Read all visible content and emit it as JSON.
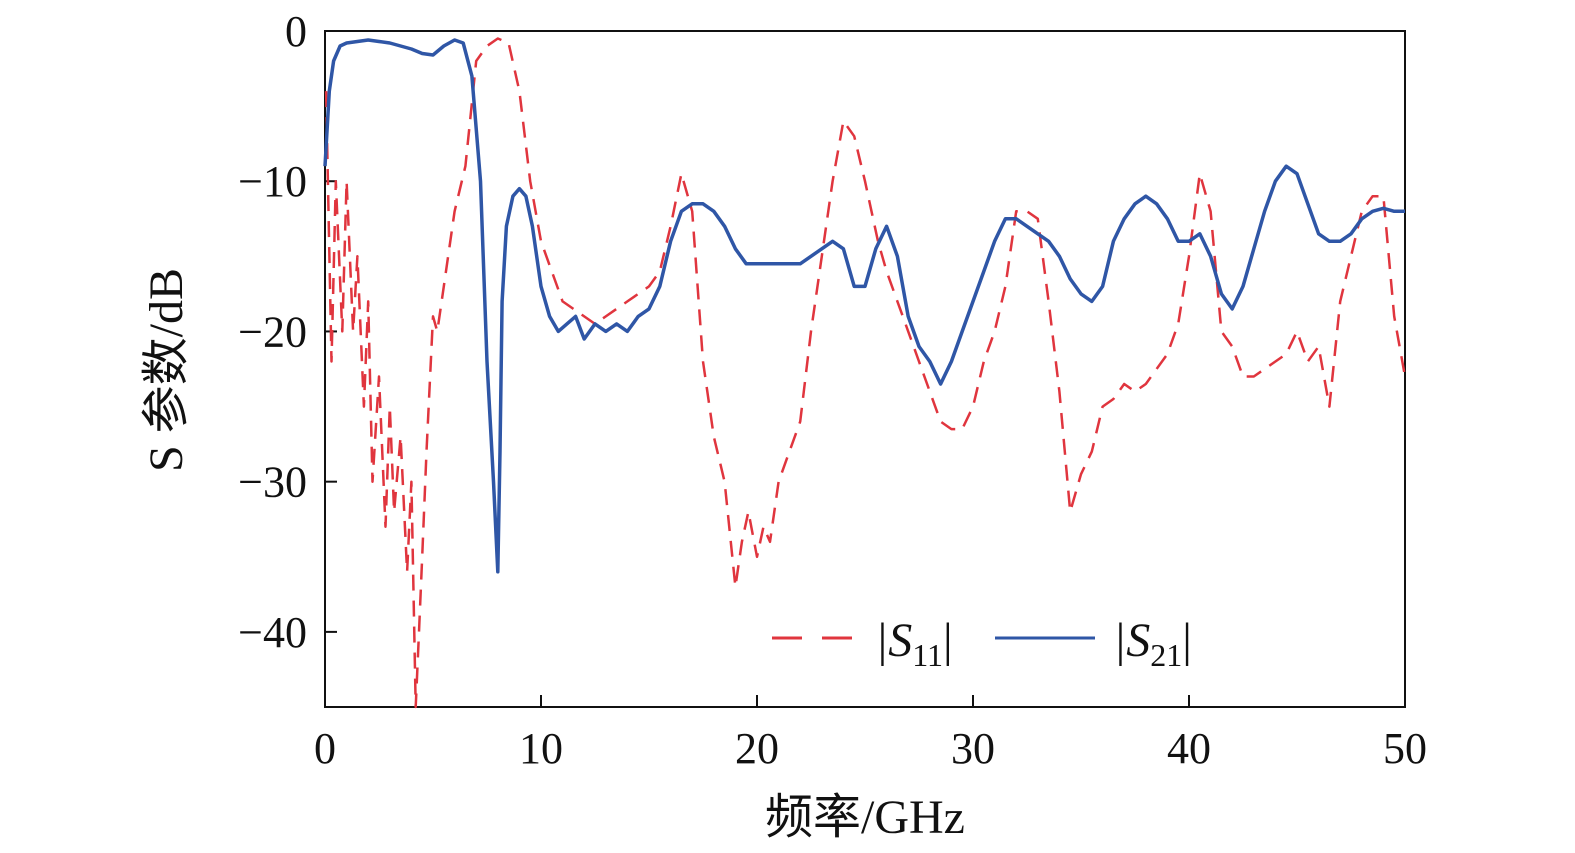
{
  "chart_data": {
    "type": "line",
    "xlabel": "频率/GHz",
    "ylabel": "S 参数/dB",
    "xlim": [
      0,
      50
    ],
    "ylim": [
      -45,
      0
    ],
    "xticks": [
      0,
      10,
      20,
      30,
      40,
      50
    ],
    "yticks": [
      0,
      -10,
      -20,
      -30,
      -40
    ],
    "xtick_labels": [
      "0",
      "10",
      "20",
      "30",
      "40",
      "50"
    ],
    "ytick_labels": [
      "0",
      "−10",
      "−20",
      "−30",
      "−40"
    ],
    "grid": false,
    "legend_position": "bottom-center",
    "series": [
      {
        "name": "|S11|",
        "legend_main": "|S",
        "legend_sub": "11",
        "legend_end": "|",
        "color": "#e0353e",
        "dash": "dashed",
        "x": [
          0.05,
          0.3,
          0.5,
          0.8,
          1.0,
          1.3,
          1.5,
          1.8,
          2.0,
          2.2,
          2.5,
          2.8,
          3.0,
          3.2,
          3.5,
          3.8,
          4.0,
          4.2,
          4.35,
          4.5,
          4.7,
          5.0,
          5.2,
          5.5,
          6.0,
          6.5,
          7.0,
          7.5,
          8.0,
          8.5,
          9.0,
          9.5,
          10.0,
          10.5,
          11.0,
          11.5,
          12.0,
          12.5,
          13.0,
          13.5,
          14.0,
          14.5,
          15.0,
          15.5,
          16.0,
          16.5,
          17.0,
          17.5,
          18.0,
          18.5,
          19.0,
          19.3,
          19.6,
          20.0,
          20.3,
          20.6,
          21.0,
          21.5,
          22.0,
          22.5,
          23.0,
          23.5,
          24.0,
          24.5,
          25.0,
          25.3,
          25.6,
          26.0,
          26.5,
          27.0,
          27.5,
          28.0,
          28.5,
          29.0,
          29.5,
          30.0,
          30.5,
          31.0,
          31.5,
          32.0,
          32.5,
          33.0,
          33.5,
          34.0,
          34.5,
          35.0,
          35.5,
          36.0,
          36.5,
          37.0,
          37.5,
          38.0,
          38.5,
          39.0,
          39.5,
          40.0,
          40.5,
          41.0,
          41.5,
          42.0,
          42.5,
          43.0,
          43.5,
          44.0,
          44.5,
          45.0,
          45.5,
          46.0,
          46.5,
          47.0,
          47.5,
          48.0,
          48.5,
          49.0,
          49.5,
          50.0
        ],
        "y": [
          -4,
          -22,
          -10,
          -20,
          -10,
          -20,
          -15,
          -25,
          -18,
          -30,
          -23,
          -33,
          -25,
          -32,
          -27,
          -36,
          -30,
          -45,
          -40,
          -35,
          -28,
          -19,
          -20,
          -17,
          -12,
          -9,
          -2,
          -1,
          -0.5,
          -0.8,
          -4,
          -10,
          -14,
          -16,
          -18,
          -18.5,
          -19,
          -19.5,
          -19,
          -18.5,
          -18,
          -17.5,
          -17,
          -16,
          -13,
          -9.5,
          -12,
          -22,
          -27,
          -30,
          -37,
          -34,
          -32,
          -35,
          -33,
          -34,
          -30,
          -28,
          -26,
          -20,
          -15,
          -10,
          -6,
          -7,
          -10,
          -12,
          -14,
          -16,
          -18,
          -20,
          -22,
          -24,
          -26,
          -26.5,
          -26.5,
          -25,
          -22,
          -20,
          -17,
          -12,
          -12,
          -12.5,
          -18,
          -24,
          -32,
          -29.5,
          -28,
          -25,
          -24.5,
          -23.5,
          -24,
          -23.5,
          -22.5,
          -21.5,
          -19.5,
          -15,
          -9.5,
          -12,
          -20,
          -21,
          -23,
          -23,
          -22.5,
          -22,
          -21.5,
          -20,
          -22,
          -21,
          -25,
          -18,
          -15,
          -12,
          -11,
          -11,
          -19,
          -23
        ],
        "legend_x": 0.8
      },
      {
        "name": "|S21|",
        "legend_main": "|S",
        "legend_sub": "21",
        "legend_end": "|",
        "color": "#2f56a6",
        "dash": "solid",
        "x": [
          0.0,
          0.2,
          0.4,
          0.7,
          1.0,
          1.5,
          2.0,
          2.5,
          3.0,
          3.5,
          4.0,
          4.5,
          5.0,
          5.5,
          6.0,
          6.4,
          6.8,
          7.2,
          7.5,
          7.8,
          8.0,
          8.1,
          8.2,
          8.4,
          8.7,
          9.0,
          9.3,
          9.6,
          10.0,
          10.4,
          10.8,
          11.2,
          11.6,
          12.0,
          12.5,
          13.0,
          13.5,
          14.0,
          14.5,
          15.0,
          15.5,
          16.0,
          16.5,
          17.0,
          17.5,
          18.0,
          18.5,
          19.0,
          19.5,
          20.0,
          20.5,
          21.0,
          21.5,
          22.0,
          22.5,
          23.0,
          23.5,
          24.0,
          24.5,
          25.0,
          25.5,
          26.0,
          26.5,
          27.0,
          27.5,
          28.0,
          28.5,
          29.0,
          29.5,
          30.0,
          30.5,
          31.0,
          31.5,
          32.0,
          32.5,
          33.0,
          33.5,
          34.0,
          34.5,
          35.0,
          35.5,
          36.0,
          36.5,
          37.0,
          37.5,
          38.0,
          38.5,
          39.0,
          39.5,
          40.0,
          40.5,
          41.0,
          41.5,
          42.0,
          42.5,
          43.0,
          43.5,
          44.0,
          44.5,
          45.0,
          45.5,
          46.0,
          46.5,
          47.0,
          47.5,
          48.0,
          48.5,
          49.0,
          49.5,
          50.0
        ],
        "y": [
          -9,
          -4,
          -2,
          -1,
          -0.8,
          -0.7,
          -0.6,
          -0.7,
          -0.8,
          -1.0,
          -1.2,
          -1.5,
          -1.6,
          -1.0,
          -0.6,
          -0.8,
          -3,
          -10,
          -22,
          -30,
          -36,
          -28,
          -18,
          -13,
          -11,
          -10.5,
          -11,
          -13,
          -17,
          -19,
          -20,
          -19.5,
          -19,
          -20.5,
          -19.5,
          -20,
          -19.5,
          -20,
          -19,
          -18.5,
          -17,
          -14,
          -12,
          -11.5,
          -11.5,
          -12,
          -13,
          -14.5,
          -15.5,
          -15.5,
          -15.5,
          -15.5,
          -15.5,
          -15.5,
          -15,
          -14.5,
          -14,
          -14.5,
          -17,
          -17,
          -14.5,
          -13,
          -15,
          -19,
          -21,
          -22,
          -23.5,
          -22,
          -20,
          -18,
          -16,
          -14,
          -12.5,
          -12.5,
          -13,
          -13.5,
          -14,
          -15,
          -16.5,
          -17.5,
          -18,
          -17,
          -14,
          -12.5,
          -11.5,
          -11,
          -11.5,
          -12.5,
          -14,
          -14,
          -13.5,
          -15,
          -17.5,
          -18.5,
          -17,
          -14.5,
          -12,
          -10,
          -9,
          -9.5,
          -11.5,
          -13.5,
          -14,
          -14,
          -13.5,
          -12.5,
          -12,
          -11.8,
          -12,
          -12
        ],
        "legend_x": 0.8
      }
    ]
  }
}
